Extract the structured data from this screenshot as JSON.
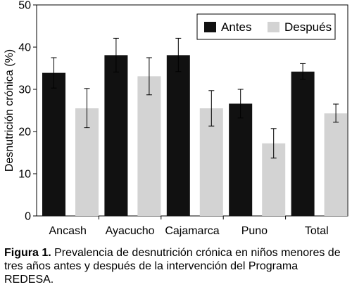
{
  "chart_data": {
    "type": "bar",
    "categories": [
      "Ancash",
      "Ayacucho",
      "Cajamarca",
      "Puno",
      "Total"
    ],
    "series": [
      {
        "name": "Antes",
        "color": "#111111",
        "values": [
          33.9,
          38.1,
          38.1,
          26.6,
          34.2
        ],
        "error_low": [
          30.3,
          34.1,
          34.2,
          23.2,
          32.4
        ],
        "error_high": [
          37.5,
          42.1,
          42.1,
          30.0,
          36.1
        ]
      },
      {
        "name": "Después",
        "color": "#d3d3d3",
        "values": [
          25.5,
          33.1,
          25.5,
          17.2,
          24.3
        ],
        "error_low": [
          20.9,
          28.7,
          21.3,
          13.7,
          22.2
        ],
        "error_high": [
          30.2,
          37.5,
          29.7,
          20.7,
          26.5
        ]
      }
    ],
    "yticks": [
      "0",
      "10",
      "20",
      "30",
      "40",
      "50"
    ],
    "ylim": [
      0,
      50
    ],
    "ylabel": "Desnutrición crónica (%)",
    "xlabel": "",
    "legend_position": "top-right",
    "grid": false
  },
  "caption": {
    "label": "Figura 1.",
    "text": " Prevalencia de desnutrición crónica en niños menores de tres años antes y después de la intervención del Programa REDESA."
  }
}
